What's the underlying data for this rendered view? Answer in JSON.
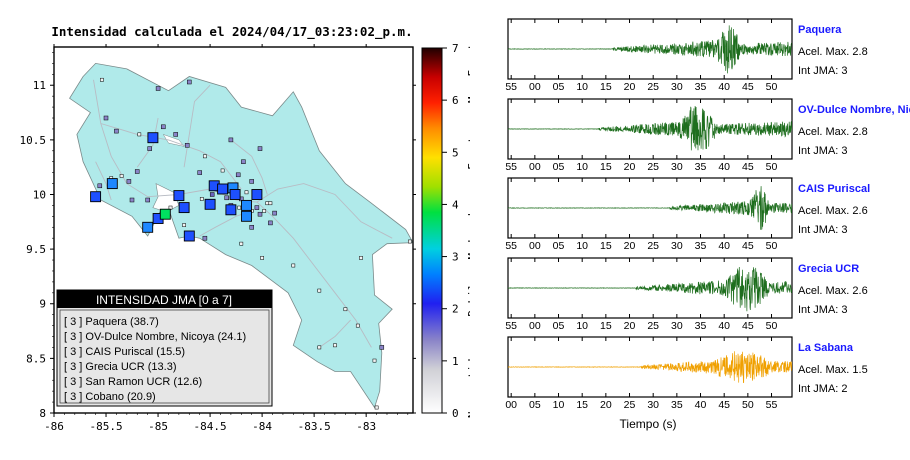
{
  "map": {
    "title": "Intensidad calculada el 2024/04/17_03:23:02_p.m.",
    "legend_title": "INTENSIDAD JMA [0 a 7]",
    "legend_items": [
      "[ 3 ]  Paquera (38.7)",
      "[ 3 ]  OV-Dulce Nombre, Nicoya (24.1)",
      "[ 3 ]  CAIS Puriscal (15.5)",
      "[ 3 ]  Grecia UCR (13.3)",
      "[ 3 ]  San Ramon UCR (12.6)",
      "[ 3 ]  Cobano (20.9)"
    ],
    "x_ticks": [
      "-86",
      "-85.5",
      "-85",
      "-84.5",
      "-84",
      "-83.5",
      "-83"
    ],
    "y_ticks": [
      "11",
      "10.5",
      "10",
      "9.5",
      "9",
      "8.5",
      "8"
    ],
    "colorbar_ticks": [
      "7",
      "6",
      "5",
      "4",
      "3",
      "2",
      "1",
      "0"
    ],
    "colorbar_labels": [
      "Muy Fuerte",
      "Fuerte",
      "Moderado",
      "Debil",
      "No sentido"
    ],
    "colors": {
      "land": "#b0eaea",
      "sea": "#ffffff"
    }
  },
  "waveforms": {
    "xlabel": "Tiempo (s)",
    "panels": [
      {
        "name": "Paquera",
        "acel": "Acel. Max. 2.8",
        "int": "Int JMA: 3",
        "ticks": [
          "55",
          "00",
          "05",
          "10",
          "15",
          "20",
          "25",
          "30",
          "35",
          "40",
          "45",
          "50"
        ],
        "color": "#1e6e1e"
      },
      {
        "name": "OV-Dulce Nombre, Nico",
        "acel": "Acel. Max. 2.8",
        "int": "Int JMA: 3",
        "ticks": [
          "55",
          "00",
          "05",
          "10",
          "15",
          "20",
          "25",
          "30",
          "35",
          "40",
          "45",
          "50"
        ],
        "color": "#1e6e1e"
      },
      {
        "name": "CAIS Puriscal",
        "acel": "Acel. Max. 2.6",
        "int": "Int JMA: 3",
        "ticks": [
          "55",
          "00",
          "05",
          "10",
          "15",
          "20",
          "25",
          "30",
          "35",
          "40",
          "45",
          "50"
        ],
        "color": "#1e6e1e"
      },
      {
        "name": "Grecia UCR",
        "acel": "Acel. Max. 2.6",
        "int": "Int JMA: 3",
        "ticks": [
          "55",
          "00",
          "05",
          "10",
          "15",
          "20",
          "25",
          "30",
          "35",
          "40",
          "45",
          "50"
        ],
        "color": "#1e6e1e"
      },
      {
        "name": "La Sabana",
        "acel": "Acel. Max. 1.5",
        "int": "Int JMA: 2",
        "ticks": [
          "00",
          "05",
          "10",
          "15",
          "20",
          "25",
          "30",
          "35",
          "40",
          "45",
          "50",
          "55"
        ],
        "color": "#f0a000"
      }
    ]
  },
  "chart_data": [
    {
      "type": "scatter",
      "title": "Intensidad calculada el 2024/04/17_03:23:02_p.m.",
      "xlim": [
        -86,
        -82.55
      ],
      "ylim": [
        8,
        11.35
      ],
      "legend": "bottom-left",
      "points": [
        {
          "x": -85.54,
          "y": 11.05,
          "i": 0
        },
        {
          "x": -85.5,
          "y": 10.7,
          "i": 1
        },
        {
          "x": -85.0,
          "y": 10.97,
          "i": 1
        },
        {
          "x": -84.7,
          "y": 11.03,
          "i": 1
        },
        {
          "x": -85.08,
          "y": 10.42,
          "i": 1
        },
        {
          "x": -84.95,
          "y": 10.62,
          "i": 1
        },
        {
          "x": -85.4,
          "y": 10.58,
          "i": 1
        },
        {
          "x": -85.18,
          "y": 10.55,
          "i": 0
        },
        {
          "x": -84.83,
          "y": 10.55,
          "i": 1
        },
        {
          "x": -84.72,
          "y": 10.45,
          "i": 1
        },
        {
          "x": -84.55,
          "y": 10.35,
          "i": 0
        },
        {
          "x": -84.3,
          "y": 10.5,
          "i": 1
        },
        {
          "x": -84.02,
          "y": 10.42,
          "i": 1
        },
        {
          "x": -84.18,
          "y": 10.3,
          "i": 1
        },
        {
          "x": -84.38,
          "y": 10.22,
          "i": 0
        },
        {
          "x": -84.6,
          "y": 10.2,
          "i": 1
        },
        {
          "x": -84.23,
          "y": 10.18,
          "i": 1
        },
        {
          "x": -84.1,
          "y": 10.12,
          "i": 1
        },
        {
          "x": -85.45,
          "y": 10.15,
          "i": 0
        },
        {
          "x": -85.28,
          "y": 10.12,
          "i": 1
        },
        {
          "x": -85.2,
          "y": 10.21,
          "i": 1
        },
        {
          "x": -85.56,
          "y": 10.08,
          "i": 1
        },
        {
          "x": -85.25,
          "y": 9.95,
          "i": 1
        },
        {
          "x": -84.88,
          "y": 9.88,
          "i": 0
        },
        {
          "x": -84.58,
          "y": 9.96,
          "i": 0
        },
        {
          "x": -84.34,
          "y": 9.97,
          "i": 1
        },
        {
          "x": -84.2,
          "y": 9.96,
          "i": 1
        },
        {
          "x": -84.05,
          "y": 9.97,
          "i": 0
        },
        {
          "x": -83.95,
          "y": 9.92,
          "i": 0
        },
        {
          "x": -84.05,
          "y": 9.88,
          "i": 1
        },
        {
          "x": -83.98,
          "y": 9.85,
          "i": 0
        },
        {
          "x": -84.1,
          "y": 9.85,
          "i": 0
        },
        {
          "x": -83.88,
          "y": 9.83,
          "i": 1
        },
        {
          "x": -84.3,
          "y": 9.9,
          "i": 1
        },
        {
          "x": -84.22,
          "y": 9.88,
          "i": 0
        },
        {
          "x": -84.02,
          "y": 9.82,
          "i": 1
        },
        {
          "x": -83.92,
          "y": 9.92,
          "i": 0
        },
        {
          "x": -84.15,
          "y": 10.02,
          "i": 0
        },
        {
          "x": -83.92,
          "y": 9.74,
          "i": 1
        },
        {
          "x": -84.75,
          "y": 9.72,
          "i": 0
        },
        {
          "x": -84.42,
          "y": 10.05,
          "i": 2
        },
        {
          "x": -84.48,
          "y": 10.0,
          "i": 2
        },
        {
          "x": -84.75,
          "y": 9.88,
          "i": 3
        },
        {
          "x": -84.05,
          "y": 10.0,
          "i": 3
        },
        {
          "x": -85.0,
          "y": 9.78,
          "i": 3
        },
        {
          "x": -85.1,
          "y": 9.95,
          "i": 1
        },
        {
          "x": -84.1,
          "y": 9.7,
          "i": 1
        },
        {
          "x": -84.55,
          "y": 9.6,
          "i": 1
        },
        {
          "x": -84.2,
          "y": 9.55,
          "i": 0
        },
        {
          "x": -84.0,
          "y": 9.42,
          "i": 0
        },
        {
          "x": -83.7,
          "y": 9.35,
          "i": 0
        },
        {
          "x": -83.45,
          "y": 9.12,
          "i": 0
        },
        {
          "x": -83.2,
          "y": 8.95,
          "i": 0
        },
        {
          "x": -83.08,
          "y": 8.8,
          "i": 0
        },
        {
          "x": -83.3,
          "y": 8.62,
          "i": 0
        },
        {
          "x": -83.45,
          "y": 8.6,
          "i": 0
        },
        {
          "x": -82.85,
          "y": 8.6,
          "i": 1
        },
        {
          "x": -82.92,
          "y": 8.48,
          "i": 0
        },
        {
          "x": -82.9,
          "y": 8.05,
          "i": 0
        },
        {
          "x": -83.05,
          "y": 9.42,
          "i": 0
        },
        {
          "x": -82.58,
          "y": 9.57,
          "i": 0
        },
        {
          "x": -85.35,
          "y": 10.17,
          "i": 0
        },
        {
          "x": -85.05,
          "y": 10.52,
          "i": 3.2
        },
        {
          "x": -85.44,
          "y": 10.1,
          "i": 3.3
        },
        {
          "x": -85.6,
          "y": 9.98,
          "i": 3.2
        },
        {
          "x": -85.1,
          "y": 9.7,
          "i": 3.4
        },
        {
          "x": -84.93,
          "y": 9.82,
          "i": 4.4
        },
        {
          "x": -84.7,
          "y": 9.62,
          "i": 3.2
        },
        {
          "x": -84.8,
          "y": 9.99,
          "i": 3.2
        },
        {
          "x": -84.46,
          "y": 10.08,
          "i": 3.2
        },
        {
          "x": -84.38,
          "y": 10.05,
          "i": 3.1
        },
        {
          "x": -84.28,
          "y": 10.06,
          "i": 3.3
        },
        {
          "x": -84.26,
          "y": 10.0,
          "i": 3.2
        },
        {
          "x": -84.5,
          "y": 9.91,
          "i": 3.2
        },
        {
          "x": -84.3,
          "y": 9.86,
          "i": 3.1
        },
        {
          "x": -84.15,
          "y": 9.9,
          "i": 3.4
        },
        {
          "x": -84.15,
          "y": 9.8,
          "i": 3.3
        }
      ]
    },
    {
      "type": "line",
      "series": [
        {
          "name": "Paquera",
          "acel": 2.8,
          "onset": 22,
          "peak_range": [
            44,
            49
          ],
          "peak": 2.8
        }
      ]
    },
    {
      "type": "line",
      "series": [
        {
          "name": "OV-Dulce Nombre, Nico",
          "acel": 2.8,
          "onset": 19,
          "peak_range": [
            36,
            44
          ],
          "peak": 2.8
        }
      ]
    },
    {
      "type": "line",
      "series": [
        {
          "name": "CAIS Puriscal",
          "acel": 2.6,
          "onset": 34,
          "peak_range": [
            51,
            55
          ],
          "peak": 2.6
        }
      ]
    },
    {
      "type": "line",
      "series": [
        {
          "name": "Grecia UCR",
          "acel": 2.6,
          "onset": 27,
          "peak_range": [
            46,
            55
          ],
          "peak": 2.6
        }
      ]
    },
    {
      "type": "line",
      "series": [
        {
          "name": "La Sabana",
          "acel": 1.5,
          "onset": 28,
          "peak_range": [
            44,
            55
          ],
          "peak": 1.5
        }
      ]
    }
  ]
}
